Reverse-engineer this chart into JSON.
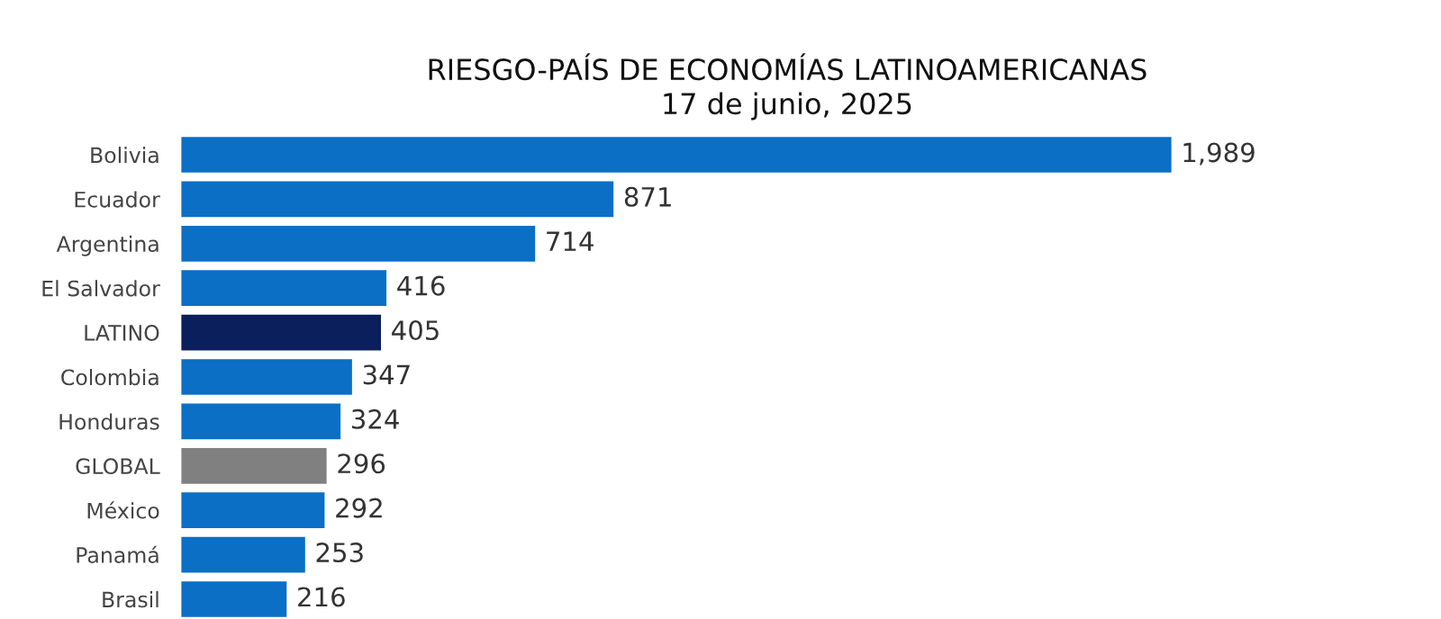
{
  "chart_data": {
    "type": "bar",
    "orientation": "horizontal",
    "title": "RIESGO-PAÍS DE ECONOMÍAS LATINOAMERICANAS",
    "subtitle": "17 de junio, 2025",
    "categories": [
      "Bolivia",
      "Ecuador",
      "Argentina",
      "El Salvador",
      "LATINO",
      "Colombia",
      "Honduras",
      "GLOBAL",
      "México",
      "Panamá",
      "Brasil"
    ],
    "values": [
      1989,
      871,
      714,
      416,
      405,
      347,
      324,
      296,
      292,
      253,
      216
    ],
    "value_labels": [
      "1,989",
      "871",
      "714",
      "416",
      "405",
      "347",
      "324",
      "296",
      "292",
      "253",
      "216"
    ],
    "colors": [
      "#0b6fc6",
      "#0b6fc6",
      "#0b6fc6",
      "#0b6fc6",
      "#0a1f5c",
      "#0b6fc6",
      "#0b6fc6",
      "#808080",
      "#0b6fc6",
      "#0b6fc6",
      "#0b6fc6"
    ],
    "grid": false,
    "legend": false
  }
}
